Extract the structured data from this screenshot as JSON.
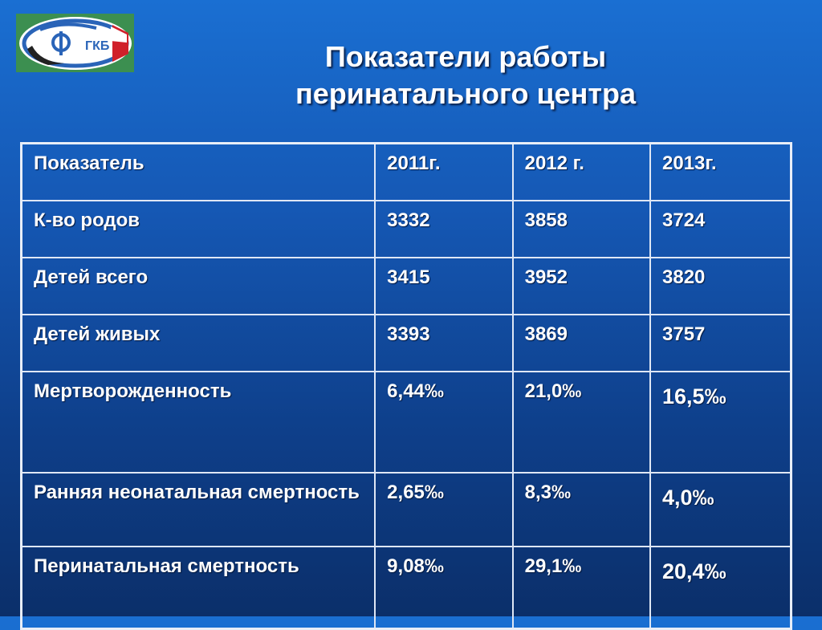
{
  "logo": {
    "text": "ГКБ",
    "icon": "hospital-emblem-icon",
    "colors": {
      "ring_blue": "#2a64b8",
      "flag_red": "#d0202a",
      "bg": "#3c8f50"
    }
  },
  "title": {
    "line1": "Показатели работы",
    "line2": "перинатального центра"
  },
  "table": {
    "header": [
      "Показатель",
      "2011г.",
      "2012 г.",
      "2013г."
    ],
    "rows": [
      [
        "К-во родов",
        "3332",
        "3858",
        "3724"
      ],
      [
        "Детей всего",
        "3415",
        "3952",
        "3820"
      ],
      [
        "Детей живых",
        "3393",
        "3869",
        "3757"
      ],
      [
        "Мертворожденность",
        "6,44‰",
        "21,0‰",
        "16,5‰"
      ],
      [
        "Ранняя неонатальная смертность",
        "2,65‰",
        "8,3‰",
        "4,0‰"
      ],
      [
        "Перинатальная смертность",
        "9,08‰",
        "29,1‰",
        "20,4‰"
      ]
    ]
  }
}
